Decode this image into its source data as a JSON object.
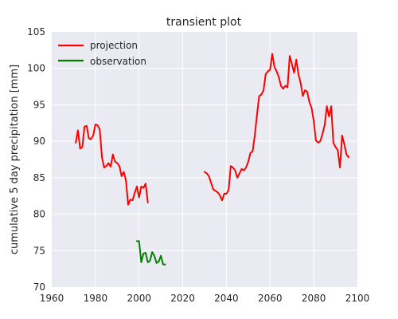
{
  "chart_data": {
    "type": "line",
    "title": "transient plot",
    "xlabel": "",
    "ylabel": "cumulative 5 day precipitation [mm]",
    "xlim": [
      1960,
      2100
    ],
    "ylim": [
      70,
      105
    ],
    "xticks": [
      1960,
      1980,
      2000,
      2020,
      2040,
      2060,
      2080,
      2100
    ],
    "yticks": [
      70,
      75,
      80,
      85,
      90,
      95,
      100,
      105
    ],
    "grid": true,
    "legend_position": "top-left",
    "background": "#EAEAF2",
    "series": [
      {
        "name": "projection",
        "color": "#FF0000",
        "segments": [
          [
            [
              1971,
              89.8
            ],
            [
              1972,
              91.5
            ],
            [
              1973,
              89.0
            ],
            [
              1974,
              89.2
            ],
            [
              1975,
              92.0
            ],
            [
              1976,
              92.1
            ],
            [
              1977,
              90.4
            ],
            [
              1978,
              90.3
            ],
            [
              1979,
              90.8
            ],
            [
              1980,
              92.3
            ],
            [
              1981,
              92.2
            ],
            [
              1982,
              91.6
            ],
            [
              1983,
              87.8
            ],
            [
              1984,
              86.4
            ],
            [
              1985,
              86.6
            ],
            [
              1986,
              87.0
            ],
            [
              1987,
              86.5
            ],
            [
              1988,
              88.2
            ],
            [
              1989,
              87.2
            ],
            [
              1990,
              87.0
            ],
            [
              1991,
              86.6
            ],
            [
              1992,
              85.2
            ],
            [
              1993,
              85.8
            ],
            [
              1994,
              84.6
            ],
            [
              1995,
              81.3
            ],
            [
              1996,
              82.0
            ],
            [
              1997,
              81.9
            ],
            [
              1998,
              82.9
            ],
            [
              1999,
              83.8
            ],
            [
              2000,
              82.3
            ],
            [
              2001,
              83.8
            ],
            [
              2002,
              83.6
            ],
            [
              2003,
              84.2
            ],
            [
              2004,
              81.6
            ]
          ],
          [
            [
              2030,
              85.8
            ],
            [
              2031,
              85.6
            ],
            [
              2032,
              85.2
            ],
            [
              2033,
              84.3
            ],
            [
              2034,
              83.4
            ],
            [
              2035,
              83.2
            ],
            [
              2036,
              83.0
            ],
            [
              2037,
              82.6
            ],
            [
              2038,
              81.9
            ],
            [
              2039,
              82.8
            ],
            [
              2040,
              82.8
            ],
            [
              2041,
              83.3
            ],
            [
              2042,
              86.6
            ],
            [
              2043,
              86.4
            ],
            [
              2044,
              86.0
            ],
            [
              2045,
              85.0
            ],
            [
              2046,
              85.6
            ],
            [
              2047,
              86.2
            ],
            [
              2048,
              86.0
            ],
            [
              2049,
              86.4
            ],
            [
              2050,
              87.2
            ],
            [
              2051,
              88.4
            ],
            [
              2052,
              88.6
            ],
            [
              2053,
              90.8
            ],
            [
              2054,
              93.6
            ],
            [
              2055,
              96.2
            ],
            [
              2056,
              96.4
            ],
            [
              2057,
              97.0
            ],
            [
              2058,
              99.2
            ],
            [
              2059,
              99.6
            ],
            [
              2060,
              99.8
            ],
            [
              2061,
              102.0
            ],
            [
              2062,
              100.2
            ],
            [
              2063,
              99.6
            ],
            [
              2064,
              98.8
            ],
            [
              2065,
              97.6
            ],
            [
              2066,
              97.2
            ],
            [
              2067,
              97.6
            ],
            [
              2068,
              97.4
            ],
            [
              2069,
              101.7
            ],
            [
              2070,
              100.6
            ],
            [
              2071,
              99.4
            ],
            [
              2072,
              101.2
            ],
            [
              2073,
              99.2
            ],
            [
              2074,
              98.0
            ],
            [
              2075,
              96.2
            ],
            [
              2076,
              97.0
            ],
            [
              2077,
              96.8
            ],
            [
              2078,
              95.4
            ],
            [
              2079,
              94.6
            ],
            [
              2080,
              92.8
            ],
            [
              2081,
              90.1
            ],
            [
              2082,
              89.8
            ],
            [
              2083,
              90.0
            ],
            [
              2084,
              91.0
            ],
            [
              2085,
              92.2
            ],
            [
              2086,
              94.8
            ],
            [
              2087,
              93.4
            ],
            [
              2088,
              94.8
            ],
            [
              2089,
              89.8
            ],
            [
              2090,
              89.2
            ],
            [
              2091,
              88.8
            ],
            [
              2092,
              86.4
            ],
            [
              2093,
              90.8
            ],
            [
              2094,
              89.6
            ],
            [
              2095,
              88.2
            ],
            [
              2096,
              87.8
            ]
          ]
        ]
      },
      {
        "name": "observation",
        "color": "#008000",
        "segments": [
          [
            [
              1999,
              76.3
            ],
            [
              2000,
              76.3
            ],
            [
              2001,
              73.4
            ],
            [
              2002,
              74.6
            ],
            [
              2003,
              74.7
            ],
            [
              2004,
              73.4
            ],
            [
              2005,
              73.6
            ],
            [
              2006,
              74.8
            ],
            [
              2007,
              74.3
            ],
            [
              2008,
              73.3
            ],
            [
              2009,
              73.5
            ],
            [
              2010,
              74.3
            ],
            [
              2011,
              73.1
            ],
            [
              2012,
              73.1
            ]
          ]
        ]
      }
    ]
  }
}
